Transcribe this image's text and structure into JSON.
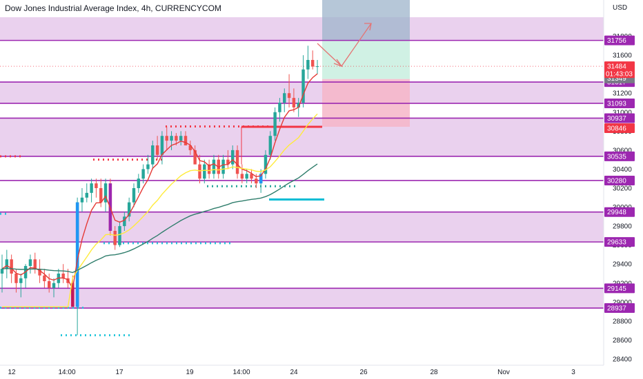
{
  "chart_data": {
    "type": "candlestick",
    "title": "Dow Jones Industrial Average Index, 4h, CURRENCYCOM",
    "ylabel": "USD",
    "ylim": [
      28400,
      32000
    ],
    "y_ticks": [
      28400,
      28600,
      28800,
      29000,
      29200,
      29400,
      29600,
      29800,
      30000,
      30200,
      30400,
      30600,
      30800,
      31000,
      31200,
      31400,
      31600,
      31800
    ],
    "x_ticks": [
      "12",
      "14:00",
      "17",
      "19",
      "14:00",
      "24",
      "26",
      "28",
      "Nov",
      "3"
    ],
    "current_price": 31484,
    "countdown": "01:43:03",
    "marker_price": 31349,
    "levels": [
      31756,
      31317,
      31093,
      30937,
      30535,
      30280,
      29948,
      29633,
      29145,
      28937
    ],
    "red_marker": 30846,
    "zones": [
      {
        "from": 31756,
        "to": 32000
      },
      {
        "from": 31093,
        "to": 31317
      },
      {
        "from": 30535,
        "to": 30937
      },
      {
        "from": 29633,
        "to": 29948
      },
      {
        "from": 28937,
        "to": 29145
      }
    ],
    "trade": {
      "entry": 31349,
      "target": 31756,
      "stop": 30846
    },
    "candles": [
      [
        29300,
        29500,
        29100,
        29350
      ],
      [
        29350,
        29550,
        29250,
        29450
      ],
      [
        29450,
        29500,
        29200,
        29300
      ],
      [
        29300,
        29350,
        29100,
        29200
      ],
      [
        29200,
        29300,
        29050,
        29250
      ],
      [
        29250,
        29400,
        29150,
        29380
      ],
      [
        29380,
        29500,
        29300,
        29450
      ],
      [
        29450,
        29520,
        29300,
        29350
      ],
      [
        29350,
        29450,
        29200,
        29280
      ],
      [
        29280,
        29350,
        29150,
        29220
      ],
      [
        29220,
        29300,
        29100,
        29150
      ],
      [
        29150,
        29250,
        29050,
        29200
      ],
      [
        29200,
        29350,
        29150,
        29300
      ],
      [
        29300,
        29400,
        29200,
        29250
      ],
      [
        29250,
        29350,
        29150,
        29200
      ],
      [
        29200,
        29280,
        28950,
        28950
      ],
      [
        28950,
        30100,
        28650,
        30050
      ],
      [
        30050,
        30200,
        29950,
        30100
      ],
      [
        30100,
        30250,
        30050,
        30150
      ],
      [
        30150,
        30300,
        30050,
        30250
      ],
      [
        30250,
        30300,
        30100,
        30200
      ],
      [
        30200,
        30300,
        30000,
        30050
      ],
      [
        30050,
        30300,
        29950,
        30250
      ],
      [
        30250,
        30300,
        29700,
        29750
      ],
      [
        29750,
        29800,
        29550,
        29600
      ],
      [
        29600,
        29850,
        29580,
        29800
      ],
      [
        29800,
        29950,
        29750,
        29900
      ],
      [
        29900,
        30100,
        29850,
        30050
      ],
      [
        30050,
        30250,
        30000,
        30200
      ],
      [
        30200,
        30350,
        30150,
        30300
      ],
      [
        30300,
        30450,
        30250,
        30400
      ],
      [
        30400,
        30550,
        30350,
        30450
      ],
      [
        30450,
        30700,
        30400,
        30650
      ],
      [
        30650,
        30750,
        30500,
        30550
      ],
      [
        30550,
        30800,
        30450,
        30750
      ],
      [
        30750,
        30850,
        30600,
        30700
      ],
      [
        30700,
        30800,
        30600,
        30750
      ],
      [
        30750,
        30780,
        30650,
        30700
      ],
      [
        30700,
        30800,
        30650,
        30750
      ],
      [
        30750,
        30800,
        30650,
        30650
      ],
      [
        30650,
        30700,
        30550,
        30600
      ],
      [
        30600,
        30650,
        30450,
        30450
      ],
      [
        30450,
        30550,
        30250,
        30300
      ],
      [
        30300,
        30500,
        30250,
        30450
      ],
      [
        30450,
        30500,
        30300,
        30350
      ],
      [
        30350,
        30550,
        30300,
        30500
      ],
      [
        30500,
        30550,
        30300,
        30350
      ],
      [
        30350,
        30550,
        30300,
        30500
      ],
      [
        30500,
        30600,
        30400,
        30450
      ],
      [
        30450,
        30650,
        30400,
        30600
      ],
      [
        30600,
        30650,
        30300,
        30350
      ],
      [
        30350,
        30450,
        30250,
        30300
      ],
      [
        30300,
        30400,
        30250,
        30350
      ],
      [
        30350,
        30400,
        30250,
        30300
      ],
      [
        30300,
        30350,
        30200,
        30250
      ],
      [
        30250,
        30400,
        30150,
        30350
      ],
      [
        30350,
        30600,
        30300,
        30550
      ],
      [
        30550,
        30800,
        30500,
        30750
      ],
      [
        30750,
        31050,
        30700,
        31000
      ],
      [
        31000,
        31150,
        30900,
        31100
      ],
      [
        31100,
        31250,
        31000,
        31200
      ],
      [
        31200,
        31400,
        31050,
        31150
      ],
      [
        31150,
        31250,
        31000,
        31050
      ],
      [
        31050,
        31150,
        30950,
        31100
      ],
      [
        31100,
        31600,
        31050,
        31450
      ],
      [
        31450,
        31700,
        31350,
        31550
      ],
      [
        31550,
        31650,
        31450,
        31480
      ],
      [
        31480,
        31550,
        31400,
        31484
      ]
    ]
  }
}
